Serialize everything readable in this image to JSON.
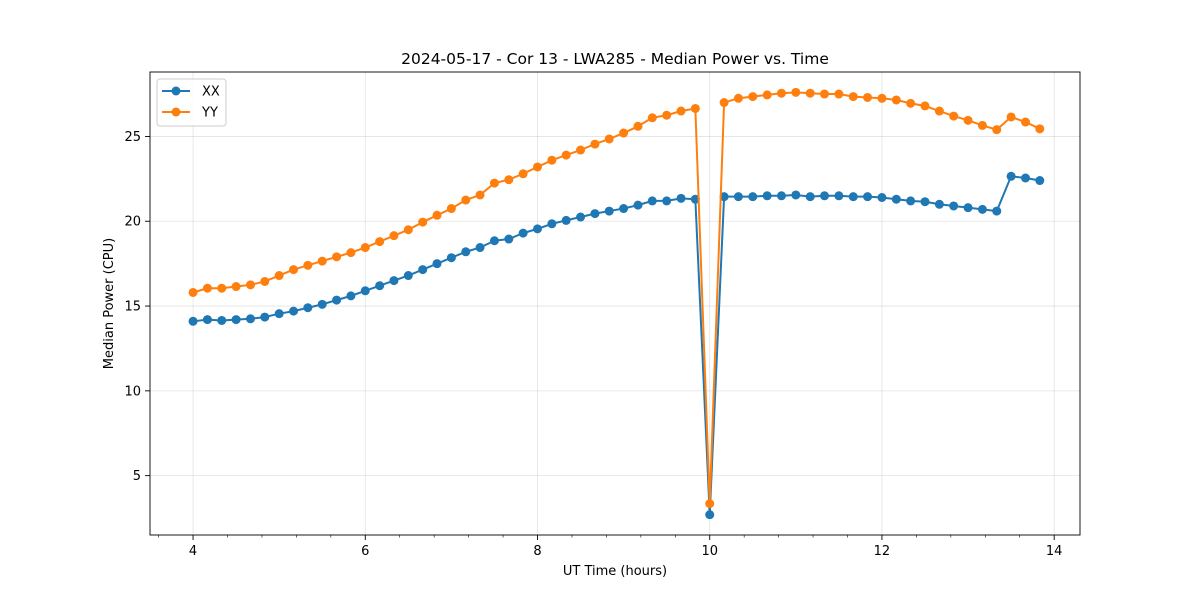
{
  "chart_data": {
    "type": "line",
    "title": "2024-05-17 - Cor 13 - LWA285 - Median Power vs. Time",
    "xlabel": "UT Time (hours)",
    "ylabel": "Median Power (CPU)",
    "xlim": [
      3.5,
      14.3
    ],
    "ylim": [
      1.5,
      28.8
    ],
    "xticks": [
      4,
      6,
      8,
      10,
      12,
      14
    ],
    "xtick_labels": [
      "4",
      "6",
      "8",
      "10",
      "12",
      "14"
    ],
    "yticks": [
      5,
      10,
      15,
      20,
      25
    ],
    "ytick_labels": [
      "5",
      "10",
      "15",
      "20",
      "25"
    ],
    "grid": true,
    "legend_position": "top-left",
    "x": [
      4.0,
      4.167,
      4.333,
      4.5,
      4.667,
      4.833,
      5.0,
      5.167,
      5.333,
      5.5,
      5.667,
      5.833,
      6.0,
      6.167,
      6.333,
      6.5,
      6.667,
      6.833,
      7.0,
      7.167,
      7.333,
      7.5,
      7.667,
      7.833,
      8.0,
      8.167,
      8.333,
      8.5,
      8.667,
      8.833,
      9.0,
      9.167,
      9.333,
      9.5,
      9.667,
      9.833,
      10.0,
      10.167,
      10.333,
      10.5,
      10.667,
      10.833,
      11.0,
      11.167,
      11.333,
      11.5,
      11.667,
      11.833,
      12.0,
      12.167,
      12.333,
      12.5,
      12.667,
      12.833,
      13.0,
      13.167,
      13.333,
      13.5,
      13.667,
      13.833
    ],
    "series": [
      {
        "name": "XX",
        "color": "#1f77b4",
        "values": [
          14.1,
          14.2,
          14.15,
          14.2,
          14.25,
          14.35,
          14.55,
          14.7,
          14.9,
          15.1,
          15.35,
          15.6,
          15.9,
          16.2,
          16.5,
          16.8,
          17.15,
          17.5,
          17.85,
          18.2,
          18.45,
          18.85,
          18.95,
          19.3,
          19.55,
          19.85,
          20.05,
          20.25,
          20.45,
          20.6,
          20.75,
          20.95,
          21.2,
          21.2,
          21.35,
          21.3,
          2.7,
          21.45,
          21.45,
          21.45,
          21.5,
          21.5,
          21.55,
          21.45,
          21.5,
          21.5,
          21.45,
          21.45,
          21.4,
          21.3,
          21.2,
          21.15,
          21.0,
          20.9,
          20.8,
          20.7,
          20.6,
          22.65,
          22.55,
          22.4
        ]
      },
      {
        "name": "YY",
        "color": "#ff7f0e",
        "values": [
          15.8,
          16.05,
          16.05,
          16.15,
          16.25,
          16.45,
          16.8,
          17.15,
          17.4,
          17.65,
          17.9,
          18.15,
          18.45,
          18.8,
          19.15,
          19.5,
          19.95,
          20.35,
          20.75,
          21.25,
          21.55,
          22.25,
          22.45,
          22.8,
          23.2,
          23.6,
          23.9,
          24.2,
          24.55,
          24.85,
          25.2,
          25.6,
          26.1,
          26.25,
          26.5,
          26.65,
          3.35,
          27.0,
          27.25,
          27.35,
          27.45,
          27.55,
          27.6,
          27.55,
          27.5,
          27.5,
          27.35,
          27.3,
          27.25,
          27.15,
          26.95,
          26.8,
          26.5,
          26.2,
          25.95,
          25.65,
          25.4,
          26.15,
          25.85,
          25.45
        ]
      }
    ]
  }
}
